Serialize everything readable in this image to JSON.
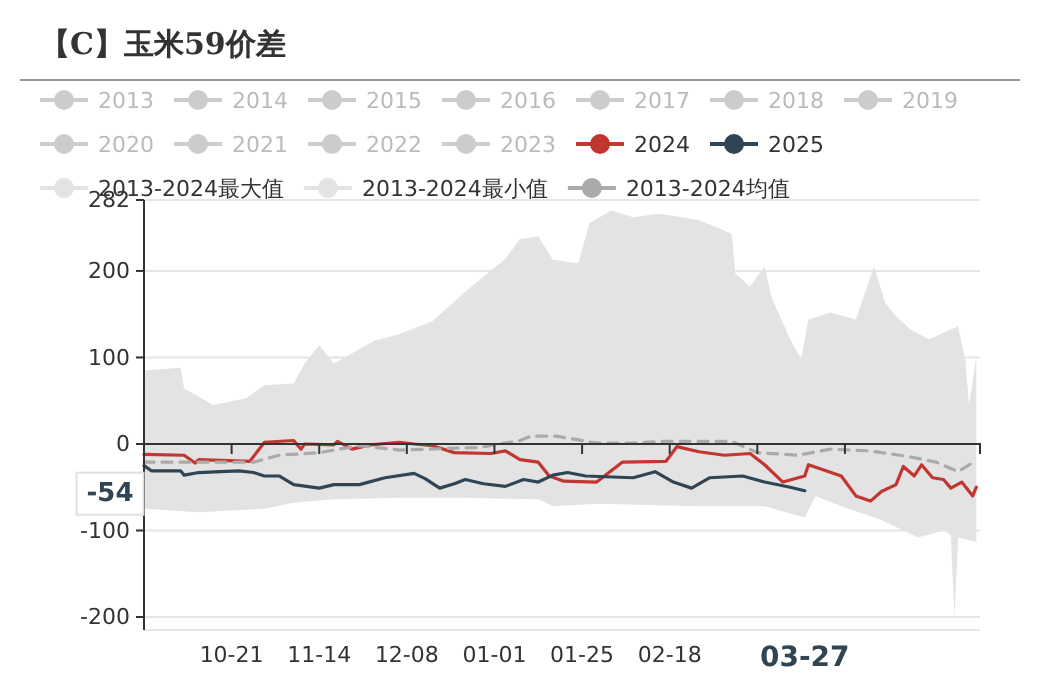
{
  "chart_data": {
    "type": "line",
    "title": "【C】玉米59价差",
    "legend": "top",
    "grid": "y",
    "xlim": [
      "2024-09-27",
      "2025-05-14"
    ],
    "xticks": [
      {
        "value": "2024-10-21",
        "label": "10-21"
      },
      {
        "value": "2024-11-14",
        "label": "11-14"
      },
      {
        "value": "2024-12-08",
        "label": "12-08"
      },
      {
        "value": "2025-01-01",
        "label": "01-01"
      },
      {
        "value": "2025-01-25",
        "label": "01-25"
      },
      {
        "value": "2025-02-18",
        "label": "02-18"
      },
      {
        "value": "2025-03-14",
        "label": null
      },
      {
        "value": "2025-04-07",
        "label": null
      }
    ],
    "ylim": [
      -215,
      282
    ],
    "yticks": [
      -200,
      -100,
      0,
      100,
      200,
      282
    ],
    "annotations": [
      {
        "text": "-54",
        "y": -54
      },
      "03-27"
    ],
    "series": [
      {
        "name": "2013",
        "color": "#cccccc"
      },
      {
        "name": "2014",
        "color": "#cccccc"
      },
      {
        "name": "2015",
        "color": "#cccccc"
      },
      {
        "name": "2016",
        "color": "#cccccc"
      },
      {
        "name": "2017",
        "color": "#cccccc"
      },
      {
        "name": "2018",
        "color": "#cccccc"
      },
      {
        "name": "2019",
        "color": "#cccccc"
      },
      {
        "name": "2020",
        "color": "#cccccc"
      },
      {
        "name": "2021",
        "color": "#cccccc"
      },
      {
        "name": "2022",
        "color": "#cccccc"
      },
      {
        "name": "2023",
        "color": "#cccccc"
      },
      {
        "name": "2024",
        "color": "#c23531",
        "x": [
          "2024-09-27",
          "2024-10-08",
          "2024-10-11",
          "2024-10-12",
          "2024-10-26",
          "2024-10-30",
          "2024-11-07",
          "2024-11-09",
          "2024-11-10",
          "2024-11-18",
          "2024-11-19",
          "2024-11-23",
          "2024-11-28",
          "2024-12-06",
          "2024-12-10",
          "2024-12-15",
          "2024-12-21",
          "2024-12-31",
          "2025-01-04",
          "2025-01-08",
          "2025-01-13",
          "2025-01-16",
          "2025-01-20",
          "2025-01-29",
          "2025-02-05",
          "2025-02-17",
          "2025-02-20",
          "2025-02-26",
          "2025-03-05",
          "2025-03-12",
          "2025-03-16",
          "2025-03-21",
          "2025-03-27",
          "2025-03-28",
          "2025-04-06",
          "2025-04-10",
          "2025-04-14",
          "2025-04-17",
          "2025-04-21",
          "2025-04-23",
          "2025-04-26",
          "2025-04-28",
          "2025-05-01",
          "2025-05-04",
          "2025-05-06",
          "2025-05-09",
          "2025-05-12",
          "2025-05-13"
        ],
        "values": [
          -12,
          -13,
          -22,
          -18,
          -20,
          2,
          4,
          -6,
          0,
          -1,
          3,
          -6,
          -1,
          2,
          0,
          -2,
          -10,
          -11,
          -8,
          -18,
          -21,
          -37,
          -43,
          -44,
          -21,
          -20,
          -3,
          -9,
          -13,
          -11,
          -24,
          -44,
          -37,
          -24,
          -37,
          -60,
          -66,
          -55,
          -47,
          -26,
          -37,
          -24,
          -39,
          -41,
          -51,
          -44,
          -60,
          -50
        ]
      },
      {
        "name": "2025",
        "color": "#2f4554",
        "x": [
          "2024-09-27",
          "2024-09-29",
          "2024-10-07",
          "2024-10-08",
          "2024-10-12",
          "2024-10-18",
          "2024-10-23",
          "2024-10-27",
          "2024-10-30",
          "2024-11-03",
          "2024-11-07",
          "2024-11-14",
          "2024-11-18",
          "2024-11-25",
          "2024-12-02",
          "2024-12-10",
          "2024-12-13",
          "2024-12-17",
          "2024-12-21",
          "2024-12-24",
          "2024-12-29",
          "2025-01-04",
          "2025-01-09",
          "2025-01-13",
          "2025-01-17",
          "2025-01-21",
          "2025-01-26",
          "2025-02-08",
          "2025-02-14",
          "2025-02-19",
          "2025-02-24",
          "2025-03-01",
          "2025-03-10",
          "2025-03-16",
          "2025-03-23",
          "2025-03-27"
        ],
        "values": [
          -25,
          -31,
          -31,
          -36,
          -33,
          -32,
          -31,
          -33,
          -37,
          -37,
          -47,
          -51,
          -47,
          -47,
          -39,
          -34,
          -40,
          -51,
          -46,
          -41,
          -46,
          -49,
          -41,
          -44,
          -36,
          -33,
          -37,
          -39,
          -32,
          -44,
          -51,
          -39,
          -37,
          -44,
          -50,
          -54
        ]
      },
      {
        "name": "2013-2024最大值",
        "type": "area",
        "color": "#e3e3e3",
        "x": [
          "2024-09-27",
          "2024-10-07",
          "2024-10-08",
          "2024-10-16",
          "2024-10-25",
          "2024-10-30",
          "2024-11-07",
          "2024-11-10",
          "2024-11-14",
          "2024-11-18",
          "2024-11-29",
          "2024-12-06",
          "2024-12-15",
          "2024-12-24",
          "2025-01-04",
          "2025-01-08",
          "2025-01-13",
          "2025-01-17",
          "2025-01-24",
          "2025-01-27",
          "2025-02-02",
          "2025-02-08",
          "2025-02-15",
          "2025-02-26",
          "2025-03-07",
          "2025-03-08",
          "2025-03-12",
          "2025-03-16",
          "2025-03-18",
          "2025-03-23",
          "2025-03-26",
          "2025-03-28",
          "2025-04-03",
          "2025-04-10",
          "2025-04-15",
          "2025-04-18",
          "2025-04-21",
          "2025-04-25",
          "2025-04-30",
          "2025-05-08",
          "2025-05-10",
          "2025-05-11",
          "2025-05-13"
        ],
        "values": [
          85,
          88,
          64,
          45,
          53,
          68,
          70,
          93,
          114,
          93,
          119,
          127,
          142,
          176,
          214,
          237,
          240,
          213,
          209,
          255,
          270,
          262,
          266,
          259,
          243,
          197,
          182,
          205,
          168,
          121,
          98,
          144,
          152,
          144,
          205,
          163,
          148,
          132,
          121,
          136,
          96,
          45,
          101
        ]
      },
      {
        "name": "2013-2024最小值",
        "type": "area",
        "color": "#e3e3e3",
        "x": [
          "2024-09-27",
          "2024-10-12",
          "2024-10-30",
          "2024-11-07",
          "2024-11-18",
          "2024-12-06",
          "2024-12-24",
          "2025-01-13",
          "2025-01-17",
          "2025-01-29",
          "2025-02-26",
          "2025-03-16",
          "2025-03-27",
          "2025-03-30",
          "2025-04-06",
          "2025-04-17",
          "2025-04-27",
          "2025-05-04",
          "2025-05-06",
          "2025-05-07",
          "2025-05-08",
          "2025-05-13"
        ],
        "values": [
          -75,
          -79,
          -75,
          -68,
          -64,
          -62,
          -62,
          -64,
          -72,
          -69,
          -72,
          -72,
          -85,
          -60,
          -72,
          -88,
          -108,
          -100,
          -105,
          -200,
          -108,
          -113
        ]
      },
      {
        "name": "2013-2024均值",
        "color": "#aaaaaa",
        "line_style": "dashed",
        "x": [
          "2024-09-27",
          "2024-10-12",
          "2024-10-27",
          "2024-11-03",
          "2024-11-14",
          "2024-11-25",
          "2024-12-06",
          "2024-12-28",
          "2025-01-08",
          "2025-01-11",
          "2025-01-18",
          "2025-01-29",
          "2025-02-08",
          "2025-02-16",
          "2025-03-07",
          "2025-03-14",
          "2025-03-25",
          "2025-04-03",
          "2025-04-14",
          "2025-04-25",
          "2025-05-02",
          "2025-05-08",
          "2025-05-13"
        ],
        "values": [
          -21,
          -21,
          -21,
          -13,
          -10,
          -2,
          -7,
          -4,
          4,
          9,
          9,
          1,
          1,
          3,
          3,
          -10,
          -13,
          -6,
          -8,
          -15,
          -21,
          -32,
          -19
        ]
      }
    ]
  }
}
